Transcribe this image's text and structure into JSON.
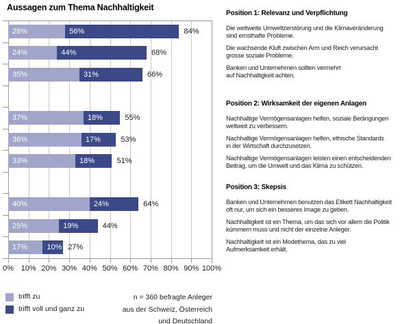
{
  "title": "Aussagen zum Thema Nachhaltigkeit",
  "colors": {
    "agree": "#A0A5C9",
    "strongly_agree": "#3B4988",
    "grid": "#C8C8C8",
    "axis": "#999999",
    "bar_value_text": "#FFFFFF",
    "text": "#1A1A1A"
  },
  "chart_data": {
    "type": "bar",
    "orientation": "horizontal",
    "stacked": true,
    "title": "Aussagen zum Thema Nachhaltigkeit",
    "xlabel": "",
    "ylabel": "",
    "xlim": [
      0,
      100
    ],
    "x_tick_step": 10,
    "x_tick_suffix": "%",
    "grid": true,
    "legend_position": "bottom-left",
    "categories": [
      "Die weltweite Umweltzerstörung und die Klimaveränderung sind ernsthafte Probleme.",
      "Die wachsende Kluft zwischen Arm und Reich verursacht grosse soziale Probleme.",
      "Banken und Unternehmen sollten vermehrt auf Nachhaltigkeit achten.",
      "Nachhaltige Vermögensanlagen helfen, soziale Bedingungen weltweit zu verbessern.",
      "Nachhaltige Vermögensanlagen helfen, ethische Standards in der Wirtschaft durchzusetzen.",
      "Nachhaltige Vermögensanlagen leisten einen entscheidenden Beitrag, um die Umwelt und das Klima zu schützen.",
      "Banken und Unternehmen benutzen das Etikett Nachhaltigkeit oft nur, um sich ein besseres Image zu geben.",
      "Nachhaltigkeit ist ein Thema, um das sich vor allem die Politik kümmern muss und nicht der einzelne Anleger.",
      "Nachhaltigkeit ist ein Modethema, das zu viel Aufmerksamkeit erhält."
    ],
    "series": [
      {
        "name": "trifft zu",
        "color": "#A0A5C9",
        "values": [
          28,
          24,
          35,
          37,
          36,
          33,
          40,
          25,
          17
        ]
      },
      {
        "name": "trifft voll und ganz zu",
        "color": "#3B4988",
        "values": [
          56,
          44,
          31,
          18,
          17,
          18,
          24,
          19,
          10
        ]
      }
    ],
    "totals": [
      84,
      68,
      66,
      55,
      53,
      51,
      64,
      44,
      27
    ],
    "row_slots": [
      0,
      1,
      2,
      4,
      5,
      6,
      8,
      9,
      10
    ],
    "slot_count": 11
  },
  "legend": {
    "items": [
      {
        "label": "trifft zu",
        "color": "#A0A5C9"
      },
      {
        "label": "trifft voll und ganz zu",
        "color": "#3B4988"
      }
    ]
  },
  "sample_note": "n = 360 befragte Anleger\naus der Schweiz, Österreich\nund Deutschland",
  "positions": [
    {
      "heading": "Position 1: Relevanz und Verpflichtung",
      "statements": [
        "Die weltweite Umweltzerstörung und die Klimaveränderung\nsind ernsthafte Probleme.",
        "Die wachsende Kluft zwischen Arm und Reich verursacht\ngrosse soziale Probleme.",
        "Banken und Unternehmen sollten vermehrt\nauf Nachhaltigkeit achten."
      ]
    },
    {
      "heading": "Position 2: Wirksamkeit der eigenen Anlagen",
      "statements": [
        "Nachhaltige Vermögensanlagen helfen, soziale Bedingungen\nweltweit zu verbessern.",
        "Nachhaltige Vermögensanlagen helfen, ethische Standards\nin der Wirtschaft durchzusetzen.",
        "Nachhaltige Vermögensanlagen leisten einen entscheidenden\nBeitrag, um die Umwelt und das Klima zu schützen."
      ]
    },
    {
      "heading": "Position 3: Skepsis",
      "statements": [
        "Banken und Unternehmen benutzen das Etikett Nachhaltigkeit\noft nur, um sich ein besseres Image zu geben.",
        "Nachhaltigkeit ist ein Thema, um das sich vor allem die Politik\nkümmern muss und nicht der einzelne Anleger.",
        "Nachhaltigkeit ist ein Modethema, das zu viel\nAufmerksamkeit erhält."
      ]
    }
  ]
}
